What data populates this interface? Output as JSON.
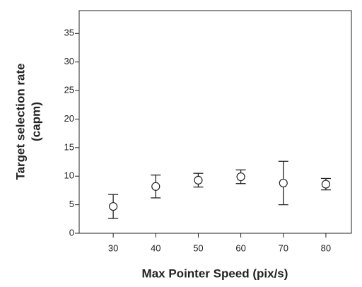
{
  "chart_data": {
    "type": "scatter",
    "x_label": "Max Pointer Speed (pix/s)",
    "y_label": [
      "Target selection rate",
      "(capm)"
    ],
    "x": [
      30,
      40,
      50,
      60,
      70,
      80
    ],
    "values": [
      4.7,
      8.2,
      9.3,
      9.9,
      8.8,
      8.6
    ],
    "errors": [
      2.1,
      2.0,
      1.2,
      1.2,
      3.8,
      1.0
    ],
    "color": "#222222",
    "xlim": [
      22,
      86
    ],
    "ylim": [
      0,
      39
    ],
    "xticks": [
      30,
      40,
      50,
      60,
      70,
      80
    ],
    "yticks": [
      0,
      5,
      10,
      15,
      20,
      25,
      30,
      35
    ],
    "grid": false
  }
}
